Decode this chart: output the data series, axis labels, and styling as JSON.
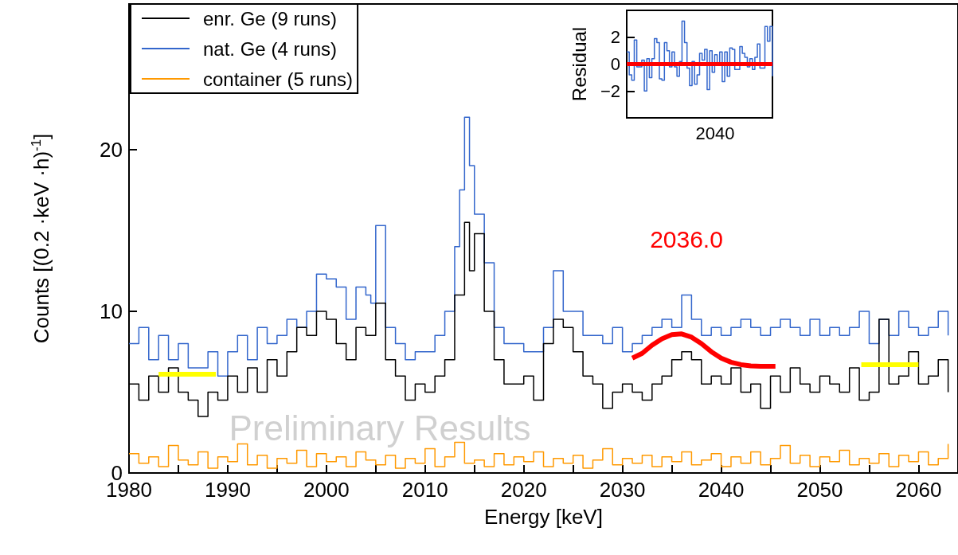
{
  "chart_data": [
    {
      "type": "step",
      "xlabel": "Energy [keV]",
      "ylabel": "Counts [(0.2 ·keV ·h)$^{-1}$]",
      "legend": "top left",
      "xlim": [
        1980,
        2064
      ],
      "xticks": [
        1980,
        {
          "value": 1985,
          "label": null
        },
        1990,
        {
          "value": 1995,
          "label": null
        },
        2000,
        {
          "value": 2005,
          "label": null
        },
        2010,
        {
          "value": 2015,
          "label": null
        },
        2020,
        {
          "value": 2025,
          "label": null
        },
        2030,
        {
          "value": 2035,
          "label": null
        },
        2040,
        {
          "value": 2045,
          "label": null
        },
        2050,
        {
          "value": 2055,
          "label": null
        },
        2060
      ],
      "ylim": [
        0,
        29
      ],
      "yticks": [
        0,
        10,
        20
      ],
      "annotations": [
        "2036.0",
        "Preliminary Results"
      ],
      "series": [
        {
          "name": "enr. Ge (9 runs)",
          "color": "#000000",
          "x": [
            1980,
            1981,
            1982,
            1983,
            1984,
            1985,
            1986,
            1987,
            1988,
            1989,
            1990,
            1991,
            1992,
            1993,
            1994,
            1995,
            1996,
            1997,
            1998,
            1999,
            2000,
            2001,
            2002,
            2003,
            2004,
            2005,
            2006,
            2007,
            2008,
            2009,
            2010,
            2011,
            2012,
            2013,
            2014,
            2014.5,
            2015,
            2016,
            2017,
            2018,
            2019,
            2020,
            2021,
            2022,
            2023,
            2024,
            2025,
            2026,
            2027,
            2028,
            2029,
            2030,
            2031,
            2032,
            2033,
            2034,
            2035,
            2036,
            2037,
            2038,
            2039,
            2040,
            2041,
            2042,
            2043,
            2044,
            2045,
            2046,
            2047,
            2048,
            2049,
            2050,
            2051,
            2052,
            2053,
            2054,
            2055,
            2056,
            2057,
            2058,
            2059,
            2060,
            2061,
            2062,
            2063
          ],
          "values": [
            5.5,
            4.5,
            6,
            5,
            6.5,
            5,
            4.5,
            3.5,
            5,
            4.5,
            6,
            5,
            6.5,
            5,
            7,
            6,
            7.5,
            9,
            8.5,
            10,
            9.5,
            8,
            7,
            9,
            8.5,
            10.5,
            7,
            6,
            4.5,
            5.5,
            5,
            6,
            7,
            11,
            15.5,
            12.5,
            14.8,
            10,
            7,
            5.5,
            5.5,
            6,
            4.5,
            8,
            9.5,
            9,
            7.5,
            6,
            5.5,
            4,
            5,
            5.5,
            5,
            4.5,
            5.5,
            6,
            7,
            7.5,
            7,
            5.5,
            6,
            5.5,
            6.5,
            5,
            5.5,
            4,
            6,
            5,
            6.5,
            5.5,
            5,
            6,
            5.5,
            5,
            6.5,
            4.5,
            5,
            9.5,
            5.5,
            6,
            7.5,
            5.5,
            6,
            7,
            5
          ]
        },
        {
          "name": "nat. Ge (4 runs)",
          "color": "#3366cc",
          "x": [
            1980,
            1981,
            1982,
            1983,
            1984,
            1985,
            1986,
            1987,
            1988,
            1989,
            1990,
            1991,
            1992,
            1993,
            1994,
            1995,
            1996,
            1997,
            1998,
            1999,
            2000,
            2001,
            2002,
            2003,
            2004,
            2004.5,
            2005,
            2006,
            2007,
            2008,
            2009,
            2010,
            2011,
            2012,
            2013,
            2013.5,
            2014,
            2014.5,
            2015,
            2016,
            2017,
            2018,
            2019,
            2020,
            2021,
            2022,
            2023,
            2024,
            2025,
            2026,
            2027,
            2028,
            2029,
            2030,
            2031,
            2032,
            2033,
            2034,
            2035,
            2036,
            2037,
            2038,
            2039,
            2040,
            2041,
            2042,
            2043,
            2044,
            2045,
            2046,
            2047,
            2048,
            2049,
            2050,
            2051,
            2052,
            2053,
            2054,
            2055,
            2056,
            2057,
            2058,
            2059,
            2060,
            2061,
            2062,
            2063
          ],
          "values": [
            8,
            9,
            7,
            8.5,
            7,
            8,
            6.5,
            6.5,
            7.5,
            6,
            7.5,
            8.5,
            7,
            9,
            8,
            8.5,
            9.5,
            9,
            10,
            12.3,
            12,
            11.5,
            9.5,
            11.5,
            11,
            10.5,
            15.3,
            9,
            8,
            7,
            7.5,
            7.5,
            8.5,
            10,
            14,
            17.5,
            22,
            19,
            16,
            13,
            9,
            8,
            8,
            7.5,
            7.5,
            9,
            12.5,
            10,
            10,
            8.5,
            8.5,
            8,
            9,
            7.5,
            8,
            8.5,
            9,
            9.5,
            9,
            11,
            9.5,
            8.5,
            9,
            8.5,
            9,
            9.5,
            9,
            8.5,
            9,
            9.5,
            9,
            8.5,
            9.5,
            8.5,
            9,
            8.5,
            9,
            10,
            8,
            9.5,
            8.5,
            10,
            9,
            8.5,
            9,
            10,
            8.5
          ]
        },
        {
          "name": "container (5 runs)",
          "color": "#ff9900",
          "x": [
            1980,
            1981,
            1982,
            1983,
            1984,
            1985,
            1986,
            1987,
            1988,
            1989,
            1990,
            1991,
            1992,
            1993,
            1994,
            1995,
            1996,
            1997,
            1998,
            1999,
            2000,
            2001,
            2002,
            2003,
            2004,
            2005,
            2006,
            2007,
            2008,
            2009,
            2010,
            2011,
            2012,
            2013,
            2014,
            2015,
            2016,
            2017,
            2018,
            2019,
            2020,
            2021,
            2022,
            2023,
            2024,
            2025,
            2026,
            2027,
            2028,
            2029,
            2030,
            2031,
            2032,
            2033,
            2034,
            2035,
            2036,
            2037,
            2038,
            2039,
            2040,
            2041,
            2042,
            2043,
            2044,
            2045,
            2046,
            2047,
            2048,
            2049,
            2050,
            2051,
            2052,
            2053,
            2054,
            2055,
            2056,
            2057,
            2058,
            2059,
            2060,
            2061,
            2062,
            2063
          ],
          "values": [
            1.2,
            0.6,
            1.0,
            0.4,
            1.7,
            0.8,
            0.5,
            1.3,
            0.3,
            1.0,
            0.7,
            1.8,
            0.5,
            1.1,
            0.3,
            0.9,
            0.6,
            1.4,
            0.4,
            1.2,
            0.7,
            1.0,
            0.4,
            1.3,
            0.8,
            0.5,
            1.1,
            0.3,
            0.9,
            0.6,
            1.5,
            0.4,
            1.0,
            1.9,
            0.6,
            0.8,
            0.4,
            1.2,
            0.5,
            1.0,
            0.7,
            1.3,
            0.4,
            0.9,
            0.6,
            1.1,
            0.3,
            0.8,
            1.5,
            0.5,
            0.9,
            0.6,
            1.1,
            0.4,
            1.0,
            0.7,
            1.3,
            0.5,
            0.8,
            1.2,
            0.4,
            1.0,
            0.6,
            1.3,
            0.5,
            0.9,
            1.7,
            0.6,
            1.1,
            0.4,
            1.0,
            0.7,
            1.4,
            0.5,
            0.9,
            0.6,
            1.2,
            0.4,
            1.1,
            0.7,
            1.3,
            0.5,
            0.9,
            1.8
          ]
        },
        {
          "type": "line",
          "color": "#ff0000",
          "x": [
            2031,
            2032,
            2033,
            2034,
            2035,
            2036,
            2037,
            2038,
            2039,
            2040,
            2041,
            2042,
            2043,
            2044,
            2045.5
          ],
          "values": [
            7.1,
            7.4,
            7.9,
            8.3,
            8.55,
            8.6,
            8.4,
            8.0,
            7.5,
            7.1,
            6.85,
            6.7,
            6.62,
            6.6,
            6.6
          ]
        },
        {
          "type": "line",
          "color": "#ffff00",
          "x": [
            1983,
            1988.8
          ],
          "values": [
            6.1,
            6.1
          ]
        },
        {
          "type": "line",
          "color": "#ffff00",
          "x": [
            2054.2,
            2060
          ],
          "values": [
            6.7,
            6.7
          ]
        }
      ]
    },
    {
      "type": "step",
      "ylabel": "Residual",
      "annotations": [
        "2040"
      ],
      "categories": [
        null,
        null,
        null,
        null,
        null,
        null,
        null,
        null,
        null,
        null,
        null,
        null,
        null,
        null,
        null,
        null,
        null,
        null,
        null,
        null,
        null,
        null,
        null,
        null,
        null,
        null,
        null,
        null,
        null,
        null,
        null,
        null,
        null,
        null,
        null,
        null,
        null,
        null,
        null,
        null,
        null,
        null,
        null,
        null,
        null,
        null,
        null,
        null,
        null,
        null,
        null,
        null,
        null,
        null,
        null,
        null,
        null,
        null,
        null
      ],
      "ylim": [
        -4,
        4
      ],
      "yticks": [
        {
          "value": -2,
          "label": "−2"
        },
        0,
        2
      ],
      "ref_lines": [
        {
          "axis": "y",
          "value": 0,
          "color": "#ff0000"
        }
      ],
      "series": [
        {
          "color": "#3366cc",
          "values": [
            0.9,
            -0.8,
            -1.2,
            1.8,
            -0.2,
            -0.2,
            0.3,
            -2.0,
            0.4,
            -1.0,
            0.4,
            1.9,
            1.6,
            -1.1,
            -1.2,
            1.6,
            1.0,
            -0.2,
            0.9,
            -0.2,
            -0.9,
            0.2,
            3.2,
            1.6,
            -0.3,
            -1.6,
            0.2,
            -1.5,
            -0.8,
            0.8,
            0.3,
            1.1,
            -1.9,
            1.0,
            -0.6,
            0.7,
            0.0,
            0.9,
            -1.3,
            0.9,
            -0.9,
            1.2,
            1.1,
            -0.4,
            -0.4,
            1.3,
            0.8,
            0.5,
            -0.2,
            0.4,
            -0.4,
            0.5,
            1.5,
            -0.3,
            -0.3,
            2.8,
            1.7,
            2.8,
            -0.9
          ]
        }
      ]
    }
  ]
}
